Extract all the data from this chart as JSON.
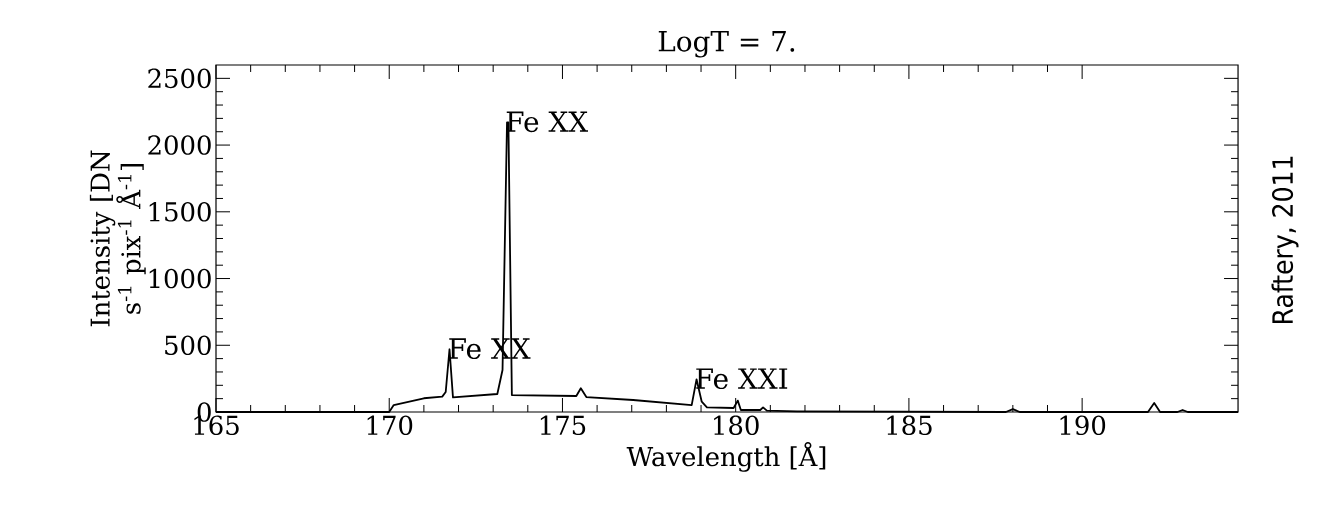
{
  "chart_data": {
    "type": "line",
    "title": "LogT = 7.",
    "xlabel": "Wavelength [Å]",
    "ylabel": "Intensity [DN s$^{-1}$ pix$^{-1}$ Å$^{-1}$]",
    "x": [
      165,
      170.0,
      170.13,
      171.0,
      171.53,
      171.63,
      171.74,
      171.84,
      173.12,
      173.27,
      173.4,
      173.44,
      173.54,
      175.4,
      175.53,
      175.69,
      177.04,
      178.73,
      178.87,
      179.02,
      179.17,
      179.94,
      180.06,
      180.15,
      180.71,
      180.79,
      180.9,
      181.77,
      187.8,
      188.0,
      188.2,
      191.9,
      192.08,
      192.25,
      192.75,
      192.9,
      193.05,
      194.5
    ],
    "series": [
      {
        "color": "#000000",
        "values": [
          0,
          0,
          52,
          103,
          115,
          150,
          470,
          110,
          135,
          315,
          2170,
          2170,
          127,
          120,
          178,
          112,
          90,
          52,
          245,
          77,
          35,
          30,
          85,
          15,
          15,
          35,
          10,
          5,
          0,
          22,
          0,
          0,
          68,
          0,
          0,
          15,
          0,
          0
        ]
      }
    ],
    "xlim": [
      165,
      194.5
    ],
    "ylim": [
      0,
      2600
    ],
    "xticks": [
      165,
      170,
      175,
      180,
      185,
      190
    ],
    "yticks": [
      0,
      500,
      1000,
      1500,
      2000,
      2500
    ],
    "grid": false,
    "marker": "none",
    "line_style": "solid",
    "annotations": [
      {
        "text": "Fe XX",
        "x": 171.74,
        "y": 470
      },
      {
        "text": "Fe XX",
        "x": 173.4,
        "y": 2170
      },
      {
        "text": "Fe XXI",
        "x": 178.87,
        "y": 245
      },
      "Raftery, 2011"
    ]
  }
}
